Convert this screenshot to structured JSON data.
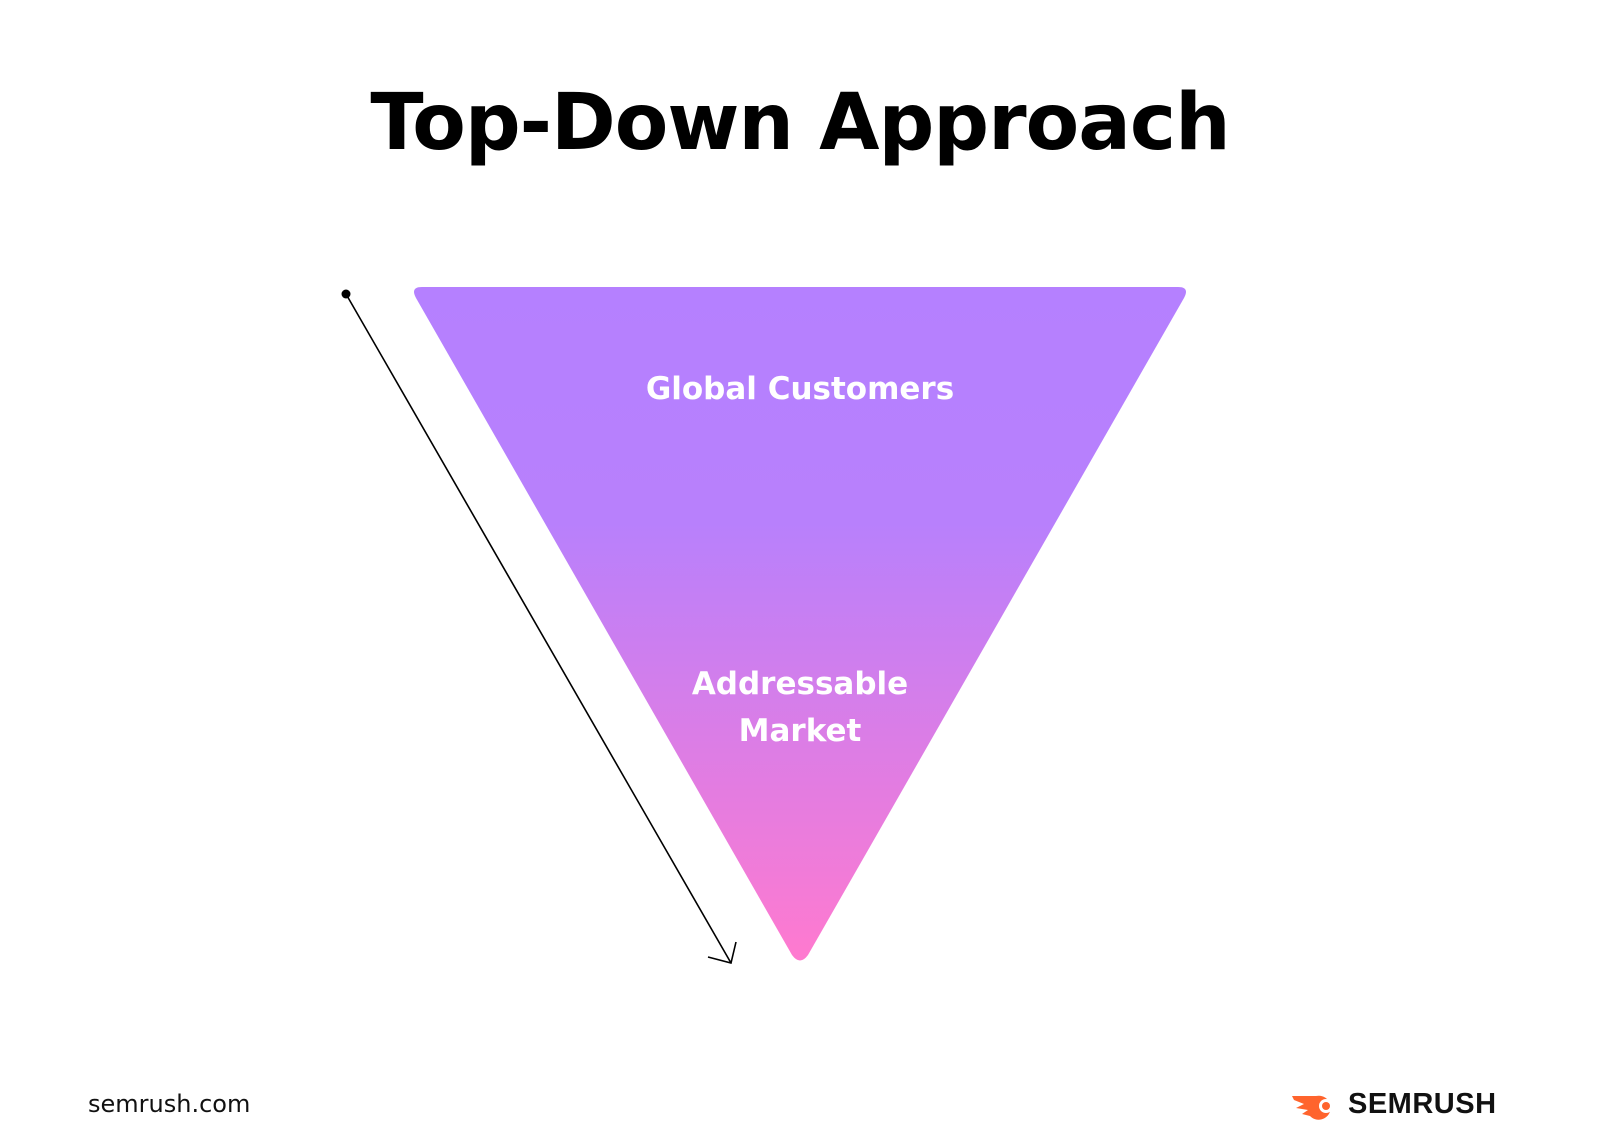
{
  "title": "Top-Down Approach",
  "funnel": {
    "top_label": "Global Customers",
    "bottom_label_line1": "Addressable",
    "bottom_label_line2": "Market",
    "gradient_top_color": "#B580FF",
    "gradient_bottom_color": "#FF7ACF"
  },
  "arrow": {
    "direction": "down",
    "color": "#000000"
  },
  "footer": {
    "site": "semrush.com",
    "brand": "SEMRUSH",
    "brand_color": "#FF642D",
    "logo_icon": "semrush-fire-icon"
  }
}
